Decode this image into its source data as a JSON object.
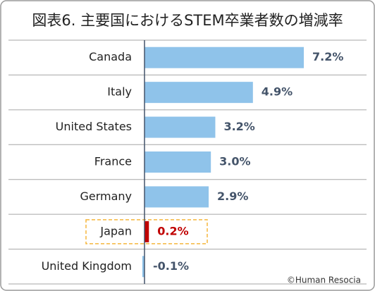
{
  "chart_data": {
    "type": "hbar",
    "title": "図表6. 主要国におけるSTEM卒業者数の増減率",
    "categories": [
      "Canada",
      "Italy",
      "United States",
      "France",
      "Germany",
      "Japan",
      "United Kingdom"
    ],
    "values": [
      7.2,
      4.9,
      3.2,
      3.0,
      2.9,
      0.2,
      -0.1
    ],
    "value_labels": [
      "7.2%",
      "4.9%",
      "3.2%",
      "3.0%",
      "2.9%",
      "0.2%",
      "-0.1%"
    ],
    "color": "#8fc3ea",
    "label_color": "#44546a",
    "highlight_index": 5,
    "highlight_color": "#c00000",
    "source": "©Human Resocia"
  }
}
